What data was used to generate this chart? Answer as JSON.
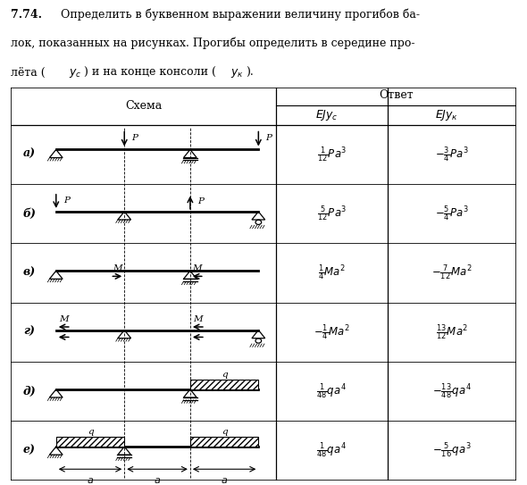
{
  "title_bold": "7.74.",
  "title_rest1": "  Определить в буквенном выражении величину прогибов ба-",
  "title_line2": "лок, показанных на рисунках. Прогибы определить в середине про-",
  "title_line3a": "лёта (",
  "title_line3b": "y",
  "title_line3c": "c",
  "title_line3d": ") и на конце консоли (",
  "title_line3e": "y",
  "title_line3f": "к",
  "title_line3g": ").",
  "col_header_center": "Ответ",
  "col_schema": "Схема",
  "col_ejyc": "EJy",
  "col_ejyc_sub": "c",
  "col_ejyk": "EJy",
  "col_ejyk_sub": "к",
  "rows": [
    "а)",
    "б)",
    "в)",
    "г)",
    "д)",
    "е)"
  ],
  "bg_color": "#ffffff",
  "text_color": "#000000"
}
